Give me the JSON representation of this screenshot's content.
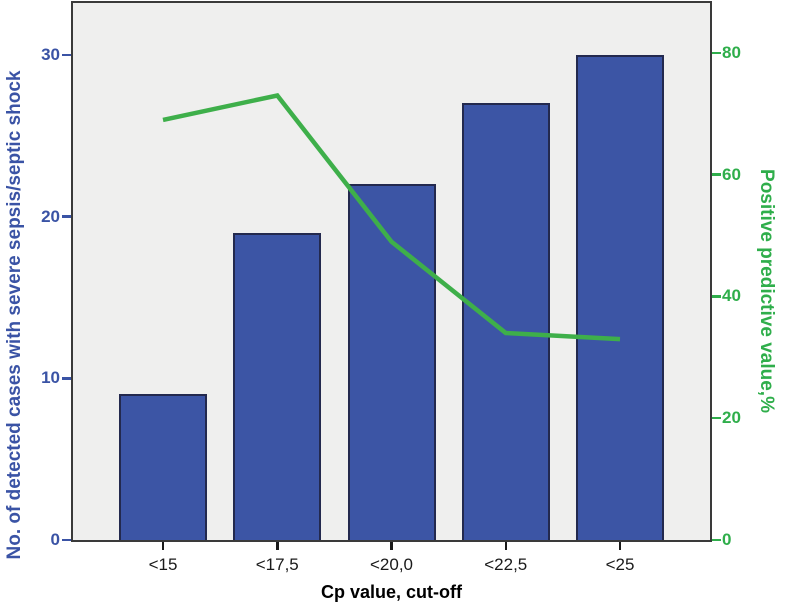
{
  "figure": {
    "background": "#ffffff",
    "plot_background": "#efefee",
    "frame_color": "#3a3a3a"
  },
  "chart_data": {
    "type": "bar",
    "categories": [
      "<15",
      "<17,5",
      "<20,0",
      "<22,5",
      "<25"
    ],
    "series": [
      {
        "name": "No. of detected cases with severe sepsis/septic shock",
        "type": "bar",
        "axis": "left",
        "values": [
          9,
          19,
          22,
          27,
          30
        ],
        "fill_color": "#3c55a5",
        "edge_color": "#23294e"
      },
      {
        "name": "Positive predictive value,%",
        "type": "line",
        "axis": "right",
        "values": [
          69,
          73,
          49,
          34,
          33
        ],
        "color": "#3eaf4a"
      }
    ],
    "xlabel": "Cp value, cut-off",
    "left_axis": {
      "label": "No. of detected cases with severe sepsis/septic shock",
      "ticks": [
        0,
        10,
        20,
        30
      ],
      "range": [
        0,
        33.2
      ],
      "color": "#3a53a5"
    },
    "right_axis": {
      "label": "Positive predictive value,%",
      "ticks": [
        0,
        20,
        40,
        60,
        80
      ],
      "range": [
        0,
        88.2
      ],
      "color": "#2fae4b"
    },
    "grid": false,
    "legend_position": "none"
  }
}
